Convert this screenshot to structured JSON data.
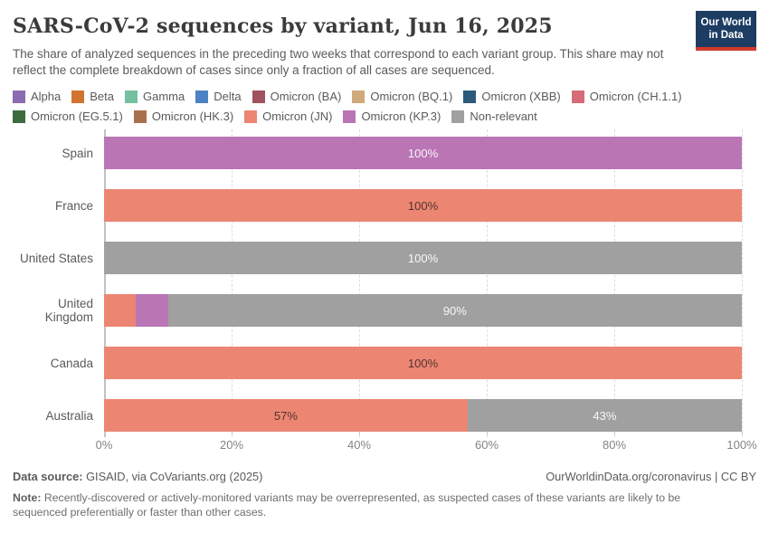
{
  "header": {
    "title": "SARS-CoV-2 sequences by variant, Jun 16, 2025",
    "subtitle": "The share of analyzed sequences in the preceding two weeks that correspond to each variant group. This share may not reflect the complete breakdown of cases since only a fraction of all cases are sequenced.",
    "logo": {
      "line1": "Our World",
      "line2": "in Data",
      "bg_color": "#1d3d63",
      "accent_color": "#d13b2b"
    }
  },
  "legend": [
    {
      "label": "Alpha",
      "color": "#8b6bb1"
    },
    {
      "label": "Beta",
      "color": "#d1742f"
    },
    {
      "label": "Gamma",
      "color": "#74c0a1"
    },
    {
      "label": "Delta",
      "color": "#4d82c4"
    },
    {
      "label": "Omicron (BA)",
      "color": "#a0525f"
    },
    {
      "label": "Omicron (BQ.1)",
      "color": "#cfa87c"
    },
    {
      "label": "Omicron (XBB)",
      "color": "#2d5a7a"
    },
    {
      "label": "Omicron (CH.1.1)",
      "color": "#d56c77"
    },
    {
      "label": "Omicron (EG.5.1)",
      "color": "#3d6b40"
    },
    {
      "label": "Omicron (HK.3)",
      "color": "#a96f4d"
    },
    {
      "label": "Omicron (JN)",
      "color": "#ec8673"
    },
    {
      "label": "Omicron (KP.3)",
      "color": "#ba75b5"
    },
    {
      "label": "Non-relevant",
      "color": "#a0a0a0"
    }
  ],
  "chart_data": {
    "type": "bar",
    "orientation": "horizontal",
    "stacked": true,
    "title": "SARS-CoV-2 sequences by variant, Jun 16, 2025",
    "categories": [
      "Spain",
      "France",
      "United States",
      "United Kingdom",
      "Canada",
      "Australia"
    ],
    "series": [
      {
        "name": "Omicron (JN)",
        "color": "#ec8673",
        "label_style": "dark",
        "values": [
          0,
          100,
          0,
          5,
          100,
          57
        ]
      },
      {
        "name": "Omicron (KP.3)",
        "color": "#ba75b5",
        "label_style": "light",
        "values": [
          100,
          0,
          0,
          5,
          0,
          0
        ]
      },
      {
        "name": "Non-relevant",
        "color": "#a0a0a0",
        "label_style": "light",
        "values": [
          0,
          0,
          100,
          90,
          0,
          43
        ]
      }
    ],
    "value_labels": {
      "Spain": [
        "100%"
      ],
      "France": [
        "100%"
      ],
      "United States": [
        "100%"
      ],
      "United Kingdom": [
        "90%"
      ],
      "Canada": [
        "100%"
      ],
      "Australia": [
        "57%",
        "43%"
      ]
    },
    "label_min_value": 20,
    "xlim": [
      0,
      100
    ],
    "x_ticks": [
      {
        "value": 0,
        "label": "0%"
      },
      {
        "value": 20,
        "label": "20%"
      },
      {
        "value": 40,
        "label": "40%"
      },
      {
        "value": 60,
        "label": "60%"
      },
      {
        "value": 80,
        "label": "80%"
      },
      {
        "value": 100,
        "label": "100%"
      }
    ],
    "grid": "vertical-dashed",
    "legend_position": "top"
  },
  "footer": {
    "source_label": "Data source:",
    "source_value": " GISAID, via CoVariants.org (2025)",
    "link": "OurWorldinData.org/coronavirus | CC BY",
    "note_label": "Note:",
    "note_text": " Recently-discovered or actively-monitored variants may be overrepresented, as suspected cases of these variants are likely to be sequenced preferentially or faster than other cases."
  }
}
